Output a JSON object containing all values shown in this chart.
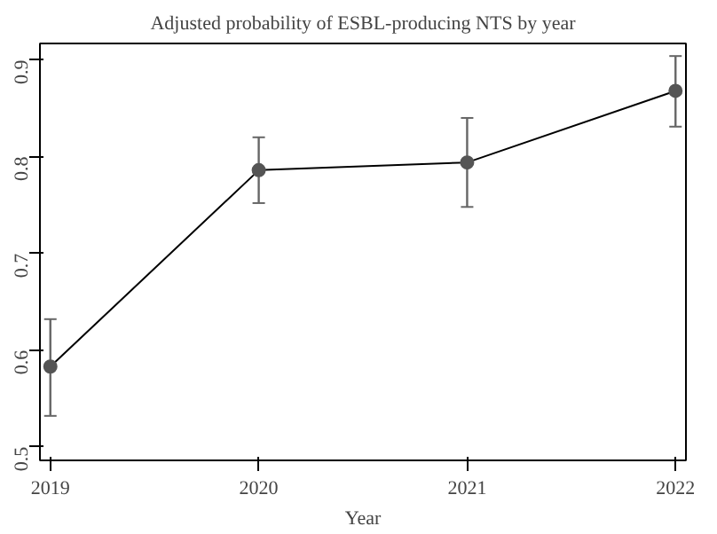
{
  "chart_data": {
    "type": "line",
    "title": "Adjusted probability of ESBL-producing NTS by year",
    "xlabel": "Year",
    "x": [
      2019,
      2020,
      2021,
      2022
    ],
    "series": [
      {
        "color": "#555555",
        "values": [
          0.583,
          0.786,
          0.794,
          0.868
        ],
        "errors": [
          [
            0.532,
            0.632
          ],
          [
            0.752,
            0.82
          ],
          [
            0.748,
            0.84
          ],
          [
            0.831,
            0.904
          ]
        ]
      }
    ],
    "xlim": [
      2018.95,
      2022.05
    ],
    "xticks": [
      2019,
      2020,
      2021,
      2022
    ],
    "ylim": [
      0.486,
      0.917
    ],
    "yticks": [
      0.5,
      0.6,
      0.7,
      0.8,
      0.9
    ],
    "grid": false,
    "marker": "circle",
    "line_style": "solid"
  }
}
